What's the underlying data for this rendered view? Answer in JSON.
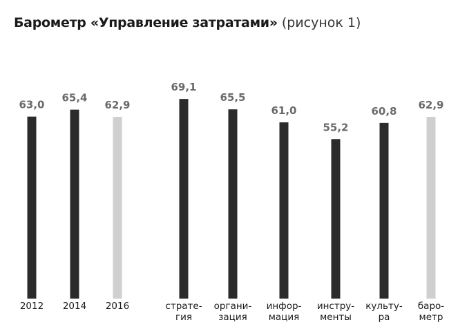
{
  "title": "Барометр «Управление затратами»",
  "subtitle": "(рисунок 1)",
  "colors": {
    "dark": "#2b2b2b",
    "light": "#cfcfcf",
    "value_label": "#6a6a6a",
    "text": "#1a1a1a",
    "background": "#ffffff"
  },
  "chart_data": {
    "type": "bar",
    "title": "Барометр «Управление затратами»",
    "subtitle": "(рисунок 1)",
    "ylim": [
      0,
      70
    ],
    "grid": false,
    "legend": "none",
    "categories": [
      [
        "2012"
      ],
      [
        "2014"
      ],
      [
        "2016"
      ],
      [
        "страте-",
        "гия"
      ],
      [
        "органи-",
        "зация"
      ],
      [
        "инфор-",
        "мация"
      ],
      [
        "инстру-",
        "менты"
      ],
      [
        "культу-",
        "ра"
      ],
      [
        "баро-",
        "метр"
      ]
    ],
    "values": [
      63.0,
      65.4,
      62.9,
      69.1,
      65.5,
      61.0,
      55.2,
      60.8,
      62.9
    ],
    "value_labels": [
      "63,0",
      "65,4",
      "62,9",
      "69,1",
      "65,5",
      "61,0",
      "55,2",
      "60,8",
      "62,9"
    ],
    "bar_colors": [
      "dark",
      "dark",
      "light",
      "dark",
      "dark",
      "dark",
      "dark",
      "dark",
      "light"
    ]
  }
}
